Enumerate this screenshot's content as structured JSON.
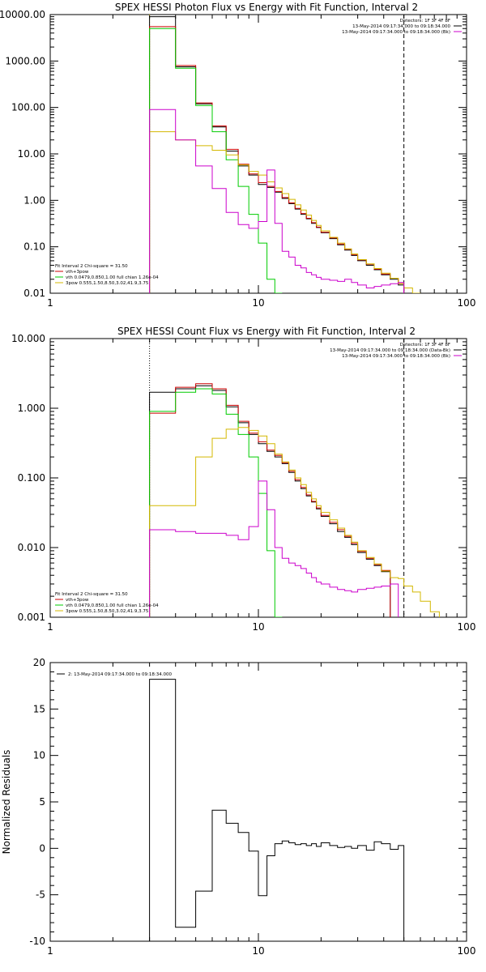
{
  "chart_data": [
    {
      "type": "line",
      "title": "SPEX HESSI Photon Flux vs Energy with Fit Function, Interval 2",
      "xlim": [
        1,
        100
      ],
      "ylim": [
        0.01,
        10000
      ],
      "xscale": "log",
      "yscale": "log",
      "x_ticks": [
        {
          "v": 1,
          "label": "1"
        },
        {
          "v": 10,
          "label": "10"
        },
        {
          "v": 100,
          "label": "100"
        }
      ],
      "y_ticks": [
        {
          "v": 0.01,
          "label": "0.01"
        },
        {
          "v": 0.1,
          "label": "0.10"
        },
        {
          "v": 1,
          "label": "1.00"
        },
        {
          "v": 10,
          "label": "10.00"
        },
        {
          "v": 100,
          "label": "100.00"
        },
        {
          "v": 1000,
          "label": "1000.00"
        },
        {
          "v": 10000,
          "label": "10000.00"
        }
      ],
      "vlines": [
        {
          "x": 3,
          "style": "dotted",
          "color": "#d4b800"
        },
        {
          "x": 50,
          "style": "dashed",
          "color": "#000000"
        }
      ],
      "legend_top": [
        {
          "text": "Detectors: 1F 3F 4F 8F",
          "color": null
        },
        {
          "text": "13-May-2014 09:17:34.000 to 09:18:34.000",
          "color": "#000000"
        },
        {
          "text": "13-May-2014 09:17:34.000 to 09:18:34.000 (Bk)",
          "color": "#cc00cc"
        }
      ],
      "legend_bottom": [
        {
          "text": "Fit Interval 2    Chi-square = 31.50",
          "color": null
        },
        {
          "text": "vth+3pow",
          "color": "#cc0000"
        },
        {
          "text": "vth 0.0479,0.850,1.00  full chian 1.26e-04",
          "color": "#00cc00"
        },
        {
          "text": "3pow 0.555,1.50,8.50,3.02,41.9,3.75",
          "color": "#d4b800"
        }
      ],
      "edges": [
        3,
        4,
        5,
        6,
        7,
        8,
        9,
        10,
        11,
        12,
        13,
        14,
        15,
        16,
        17,
        18,
        19,
        20,
        22,
        24,
        26,
        28,
        30,
        33,
        36,
        39,
        43,
        47,
        50,
        55,
        60
      ],
      "series": [
        {
          "color": "#000000",
          "values": [
            9000,
            750,
            120,
            38,
            11.5,
            5.5,
            3.5,
            2.2,
            1.9,
            1.5,
            1.1,
            0.85,
            0.65,
            0.5,
            0.4,
            0.32,
            0.26,
            0.2,
            0.15,
            0.11,
            0.085,
            0.065,
            0.05,
            0.04,
            0.032,
            0.025,
            0.02,
            0.015
          ]
        },
        {
          "color": "#cc0000",
          "values": [
            5500,
            800,
            125,
            40,
            12.5,
            6.0,
            3.7,
            2.4,
            2.0,
            1.55,
            1.15,
            0.88,
            0.67,
            0.52,
            0.41,
            0.33,
            0.265,
            0.205,
            0.155,
            0.115,
            0.088,
            0.068,
            0.052,
            0.042,
            0.033,
            0.026,
            0.021,
            0.016
          ]
        },
        {
          "color": "#00cc00",
          "values": [
            5000,
            700,
            110,
            30,
            7.5,
            2.0,
            0.5,
            0.12,
            0.02,
            0.002
          ]
        },
        {
          "color": "#d4b800",
          "values": [
            30,
            20,
            15,
            12,
            9.5,
            5.8,
            4.2,
            3.5,
            2.5,
            1.85,
            1.4,
            1.05,
            0.8,
            0.62,
            0.48,
            0.37,
            0.29,
            0.22,
            0.16,
            0.12,
            0.09,
            0.07,
            0.053,
            0.043,
            0.034,
            0.027,
            0.021,
            0.016,
            0.013,
            0.01
          ]
        },
        {
          "color": "#cc00cc",
          "values": [
            90,
            20,
            5.5,
            1.8,
            0.55,
            0.3,
            0.25,
            0.35,
            4.5,
            0.32,
            0.08,
            0.06,
            0.04,
            0.035,
            0.028,
            0.025,
            0.022,
            0.02,
            0.019,
            0.018,
            0.02,
            0.017,
            0.015,
            0.013,
            0.014,
            0.015,
            0.016,
            0.017
          ]
        }
      ]
    },
    {
      "type": "line",
      "title": "SPEX HESSI Count Flux vs Energy with Fit Function, Interval 2",
      "xlim": [
        1,
        100
      ],
      "ylim": [
        0.001,
        10
      ],
      "xscale": "log",
      "yscale": "log",
      "x_ticks": [
        {
          "v": 1,
          "label": "1"
        },
        {
          "v": 10,
          "label": "10"
        },
        {
          "v": 100,
          "label": "100"
        }
      ],
      "y_ticks": [
        {
          "v": 0.001,
          "label": "0.001"
        },
        {
          "v": 0.01,
          "label": "0.010"
        },
        {
          "v": 0.1,
          "label": "0.100"
        },
        {
          "v": 1,
          "label": "1.000"
        },
        {
          "v": 10,
          "label": "10.000"
        }
      ],
      "vlines": [
        {
          "x": 3,
          "style": "dotted",
          "color": "#000000"
        },
        {
          "x": 50,
          "style": "dashed",
          "color": "#000000"
        }
      ],
      "legend_top": [
        {
          "text": "Detectors: 1F 3F 4F 8F",
          "color": null
        },
        {
          "text": "13-May-2014 09:17:34.000 to 09:18:34.000 (Data-Bk)",
          "color": "#000000"
        },
        {
          "text": "13-May-2014 09:17:34.000 to 09:18:34.000 (Bk)",
          "color": "#cc00cc"
        }
      ],
      "legend_bottom": [
        {
          "text": "Fit Interval 2    Chi-square = 31.50",
          "color": null
        },
        {
          "text": "vth+3pow",
          "color": "#cc0000"
        },
        {
          "text": "vth 0.0479,0.850,1.00  full chian 1.26e-04",
          "color": "#00cc00"
        },
        {
          "text": "3pow 0.555,1.50,8.50,3.02,41.9,3.75",
          "color": "#d4b800"
        }
      ],
      "edges": [
        3,
        4,
        5,
        6,
        7,
        8,
        9,
        10,
        11,
        12,
        13,
        14,
        15,
        16,
        17,
        18,
        19,
        20,
        22,
        24,
        26,
        28,
        30,
        33,
        36,
        39,
        43,
        47,
        50,
        55,
        60,
        67,
        74
      ],
      "series": [
        {
          "color": "#000000",
          "values": [
            1.7,
            1.9,
            2.1,
            1.8,
            1.05,
            0.62,
            0.42,
            0.31,
            0.24,
            0.2,
            0.16,
            0.12,
            0.09,
            0.07,
            0.055,
            0.045,
            0.036,
            0.028,
            0.022,
            0.017,
            0.014,
            0.011,
            0.0085,
            0.0068,
            0.0055,
            0.0045
          ]
        },
        {
          "color": "#cc0000",
          "values": [
            0.85,
            2.0,
            2.25,
            1.9,
            1.1,
            0.65,
            0.44,
            0.33,
            0.25,
            0.21,
            0.165,
            0.125,
            0.094,
            0.073,
            0.057,
            0.046,
            0.037,
            0.029,
            0.023,
            0.018,
            0.0145,
            0.0115,
            0.0088,
            0.007,
            0.0057,
            0.0047
          ]
        },
        {
          "color": "#00cc00",
          "values": [
            0.9,
            1.7,
            1.9,
            1.6,
            0.82,
            0.42,
            0.2,
            0.06,
            0.009,
            0.0009
          ]
        },
        {
          "color": "#d4b800",
          "values": [
            0.04,
            0.04,
            0.2,
            0.37,
            0.5,
            0.53,
            0.48,
            0.4,
            0.31,
            0.22,
            0.17,
            0.13,
            0.1,
            0.08,
            0.062,
            0.05,
            0.04,
            0.032,
            0.025,
            0.019,
            0.015,
            0.012,
            0.009,
            0.0072,
            0.0058,
            0.0046,
            0.0037,
            0.0036,
            0.0028,
            0.0023,
            0.0017,
            0.0012
          ]
        },
        {
          "color": "#cc00cc",
          "values": [
            0.018,
            0.017,
            0.016,
            0.016,
            0.015,
            0.013,
            0.02,
            0.09,
            0.035,
            0.01,
            0.007,
            0.006,
            0.0055,
            0.005,
            0.0043,
            0.0037,
            0.0032,
            0.003,
            0.0027,
            0.0025,
            0.0024,
            0.0023,
            0.0025,
            0.0026,
            0.0027,
            0.0028,
            0.003
          ]
        }
      ]
    },
    {
      "type": "line",
      "xlim": [
        1,
        100
      ],
      "ylim": [
        -10,
        20
      ],
      "xscale": "log",
      "yscale": "linear",
      "ylabel": "Normalized Residuals",
      "x_ticks": [
        {
          "v": 1,
          "label": "1"
        },
        {
          "v": 10,
          "label": "10"
        },
        {
          "v": 100,
          "label": "100"
        }
      ],
      "y_ticks": [
        {
          "v": -10,
          "label": "-10"
        },
        {
          "v": -5,
          "label": "-5"
        },
        {
          "v": 0,
          "label": "0"
        },
        {
          "v": 5,
          "label": "5"
        },
        {
          "v": 10,
          "label": "10"
        },
        {
          "v": 15,
          "label": "15"
        },
        {
          "v": 20,
          "label": "20"
        }
      ],
      "legend_top": [
        {
          "text": "2: 13-May-2014 09:17:34.000 to 09:18:34.000",
          "color": "#000000"
        }
      ],
      "edges": [
        3,
        4,
        5,
        6,
        7,
        8,
        9,
        10,
        11,
        12,
        13,
        14,
        15,
        16,
        17,
        18,
        19,
        20,
        22,
        24,
        26,
        28,
        30,
        33,
        36,
        39,
        43,
        47,
        50
      ],
      "series": [
        {
          "color": "#000000",
          "values": [
            18.2,
            -8.5,
            -4.6,
            4.1,
            2.7,
            1.7,
            -0.3,
            -5.1,
            -0.8,
            0.5,
            0.8,
            0.6,
            0.4,
            0.5,
            0.3,
            0.5,
            0.2,
            0.6,
            0.3,
            0.1,
            0.2,
            0.0,
            0.3,
            -0.2,
            0.7,
            0.5,
            -0.1,
            0.3
          ]
        }
      ]
    }
  ]
}
